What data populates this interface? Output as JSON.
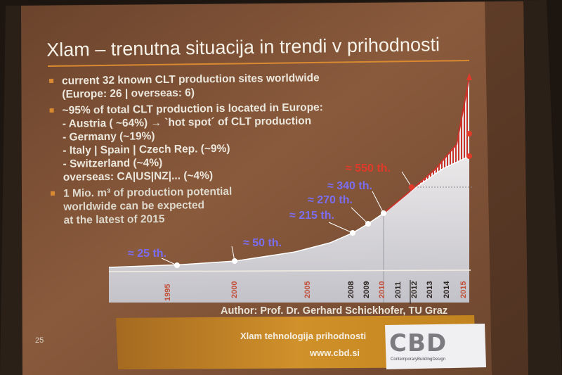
{
  "slide": {
    "title": "Xlam – trenutna situacija in trendi v prihodnosti",
    "bullets": [
      {
        "lines": [
          "current 32 known CLT production sites worldwide",
          "(Europe: 26 | overseas: 6)"
        ]
      },
      {
        "lines": [
          "~95% of total CLT production is located in Europe:",
          "- Austria ( ~64%) → `hot spot´ of CLT production",
          "- Germany (~19%)",
          "- Italy | Spain | Czech Rep. (~9%)",
          "- Switzerland (~4%)",
          "overseas: CA|US|NZ|... (~4%)"
        ]
      },
      {
        "lines": [
          "1 Mio. m³ of production potential",
          "worldwide can be expected",
          "at the latest of 2015"
        ]
      }
    ],
    "callouts": {
      "c25": "≈ 25 th.",
      "c50": "≈ 50 th.",
      "c215": "≈ 215 th.",
      "c270": "≈ 270 th.",
      "c340": "≈ 340 th.",
      "c550": "≈ 550 th."
    },
    "years": {
      "y1995": "1995",
      "y2000": "2000",
      "y2005": "2005",
      "y2008": "2008",
      "y2009": "2009",
      "y2010": "2010",
      "y2011": "2011",
      "y2012": "2012",
      "y2013": "2013",
      "y2014": "2014",
      "y2015": "2015"
    },
    "author": "Author: Prof. Dr. Gerhard Schickhofer, TU Graz",
    "footer_name": "Xlam tehnologija prihodnosti",
    "footer_url": "www.cbd.si",
    "page_number": "25",
    "logo_text": "CBD",
    "logo_subtitle": "ContemporaryBuildingDesign"
  },
  "colors": {
    "slide_bg": "#7a4e34",
    "accent_orange": "#d98a30",
    "callout_blue": "#7b6df0",
    "callout_red": "#e23a2a",
    "curve_white": "#e6e8ec",
    "forecast_red": "#c0342a"
  }
}
